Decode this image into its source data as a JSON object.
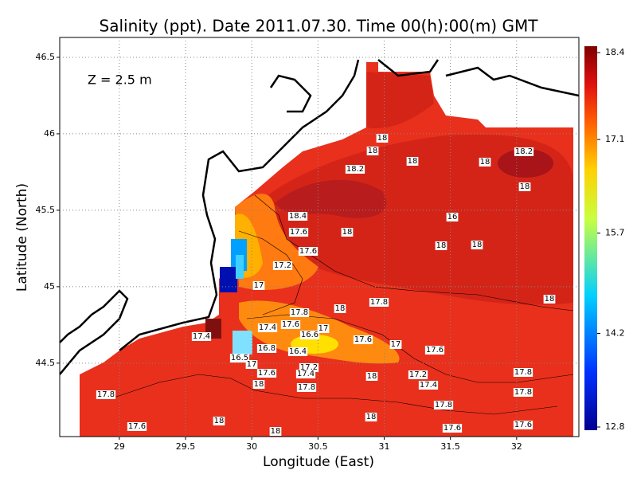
{
  "chart_data": {
    "type": "contour",
    "title": "Salinity (ppt). Date 2011.07.30. Time 00(h):00(m) GMT",
    "annotation": "Z = 2.5 m",
    "x_label": "Longitude (East)",
    "y_label": "Latitude (North)",
    "xlim": [
      28.55,
      32.47
    ],
    "ylim": [
      44.02,
      46.63
    ],
    "xticks": [
      29,
      29.5,
      30,
      30.5,
      31,
      31.5,
      32
    ],
    "yticks": [
      44.5,
      45,
      45.5,
      46,
      46.5
    ],
    "grid": true,
    "colorbar": {
      "lim": [
        12.8,
        18.4
      ],
      "ticks": [
        12.8,
        14.2,
        15.7,
        17.1,
        18.4
      ]
    },
    "contour_labels": [
      18,
      18,
      18,
      18.2,
      18,
      18.2,
      18,
      18.4,
      16,
      17.6,
      18,
      18,
      18,
      17.6,
      17.2,
      17,
      17.8,
      18,
      17.8,
      18,
      17.6,
      17.4,
      16.6,
      17,
      17.4,
      17.6,
      17,
      17.6,
      16.8,
      16.4,
      16.5,
      17,
      17.2,
      17.6,
      17.4,
      18,
      17.2,
      17.4,
      17.8,
      18,
      17.8,
      17.8,
      17.8,
      17.8,
      18,
      18,
      17.6,
      17.6,
      17.6,
      18
    ]
  }
}
